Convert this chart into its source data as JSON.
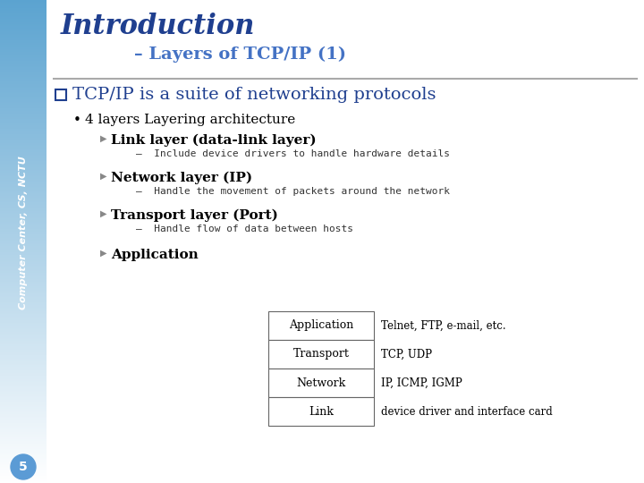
{
  "title": "Introduction",
  "subtitle": "– Layers of TCP/IP (1)",
  "main_bullet": "TCP/IP is a suite of networking protocols",
  "sub_bullet": "4 layers Layering architecture",
  "level2": [
    {
      "header": "Link layer (data-link layer)",
      "detail": "Include device drivers to handle hardware details"
    },
    {
      "header": "Network layer (IP)",
      "detail": "Handle the movement of packets around the network"
    },
    {
      "header": "Transport layer (Port)",
      "detail": "Handle flow of data between hosts"
    },
    {
      "header": "Application",
      "detail": null
    }
  ],
  "table_rows": [
    "Application",
    "Transport",
    "Network",
    "Link"
  ],
  "table_notes": [
    "Telnet, FTP, e-mail, etc.",
    "TCP, UDP",
    "IP, ICMP, IGMP",
    "device driver and interface card"
  ],
  "sidebar_text": "Computer Center, CS, NCTU",
  "page_number": "5",
  "title_color": "#1F3F8F",
  "subtitle_color": "#4472C4",
  "sidebar_top_color": "#5BA3D0",
  "sidebar_bot_color": "#FFFFFF",
  "main_bg": "#FFFFFF",
  "bullet_color": "#1F3F8F",
  "separator_color": "#AAAAAA",
  "arrow_color": "#888888",
  "detail_color": "#333333",
  "page_circle_color": "#5B9BD5"
}
